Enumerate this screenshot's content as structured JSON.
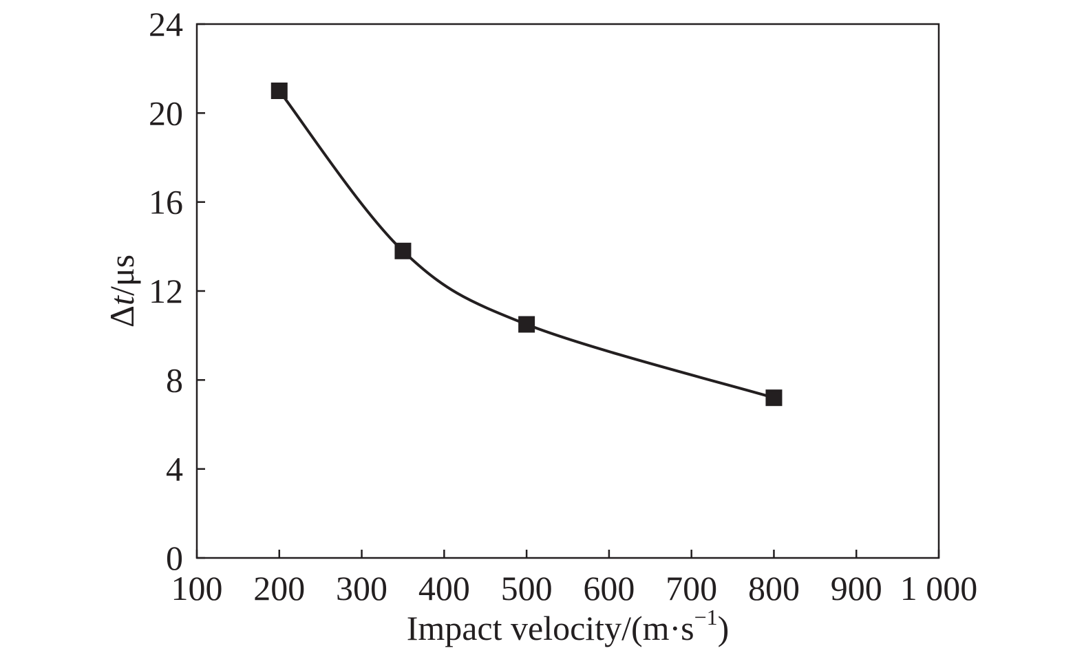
{
  "chart_data": {
    "type": "line",
    "xlabel": "Impact velocity/(m·s",
    "xlabel_superscript": "−1",
    "xlabel_close": ")",
    "ylabel_prefix": "Δ",
    "ylabel_var": "t",
    "ylabel_suffix": "/μs",
    "xlim": [
      100,
      1000
    ],
    "ylim": [
      0,
      24
    ],
    "x_ticks": [
      100,
      200,
      300,
      400,
      500,
      600,
      700,
      800,
      900,
      1000
    ],
    "x_tick_labels": [
      "100",
      "200",
      "300",
      "400",
      "500",
      "600",
      "700",
      "800",
      "900",
      "1 000"
    ],
    "y_ticks": [
      0,
      4,
      8,
      12,
      16,
      20,
      24
    ],
    "y_tick_labels": [
      "0",
      "4",
      "8",
      "12",
      "16",
      "20",
      "24"
    ],
    "grid": false,
    "series": [
      {
        "x": [
          200,
          350,
          500,
          800
        ],
        "y": [
          21.0,
          13.8,
          10.5,
          7.2
        ],
        "marker": "square",
        "color": "#231f20",
        "smooth": true
      }
    ]
  }
}
